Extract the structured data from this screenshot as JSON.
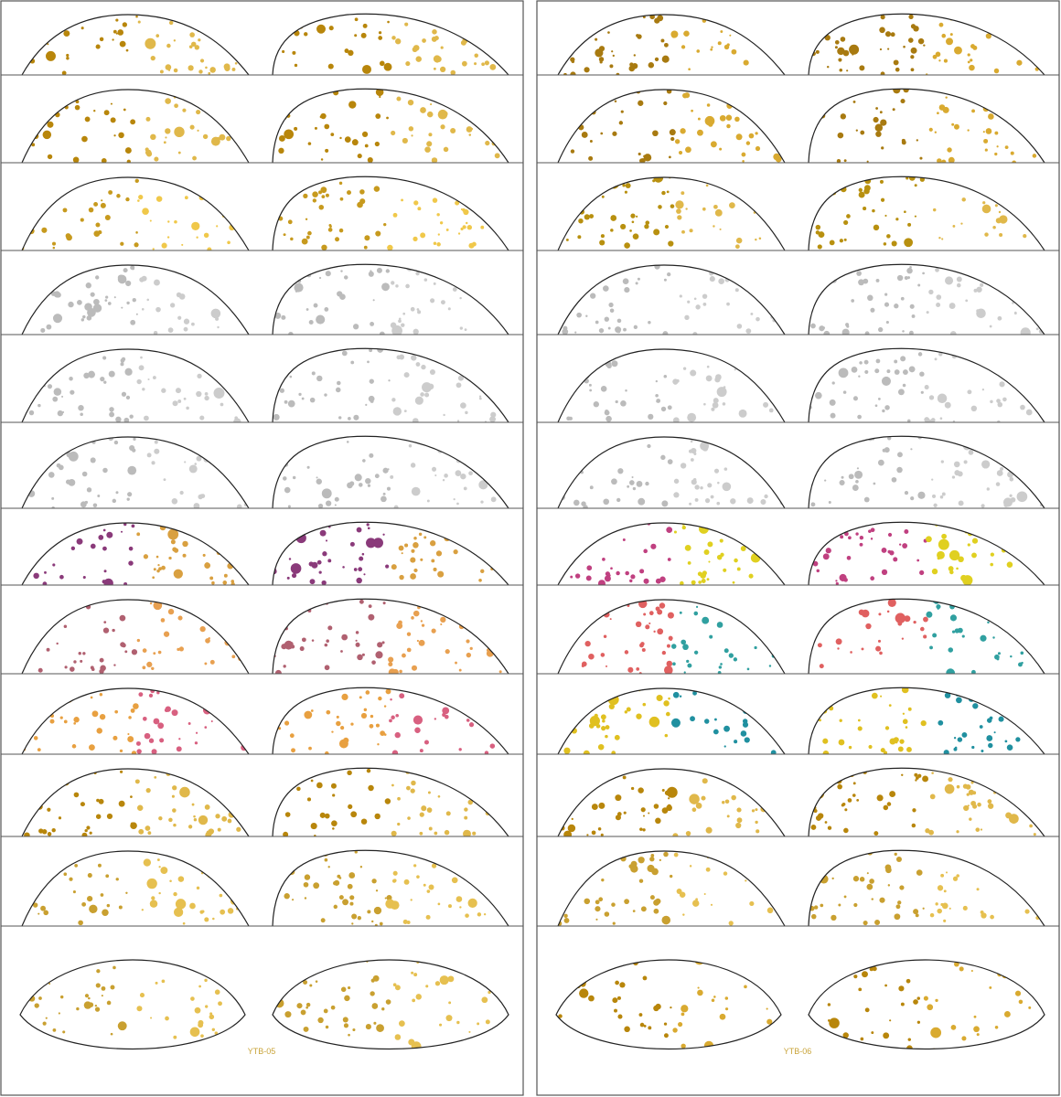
{
  "sheets": [
    {
      "label": "YTB-05"
    },
    {
      "label": "YTB-06"
    }
  ]
}
